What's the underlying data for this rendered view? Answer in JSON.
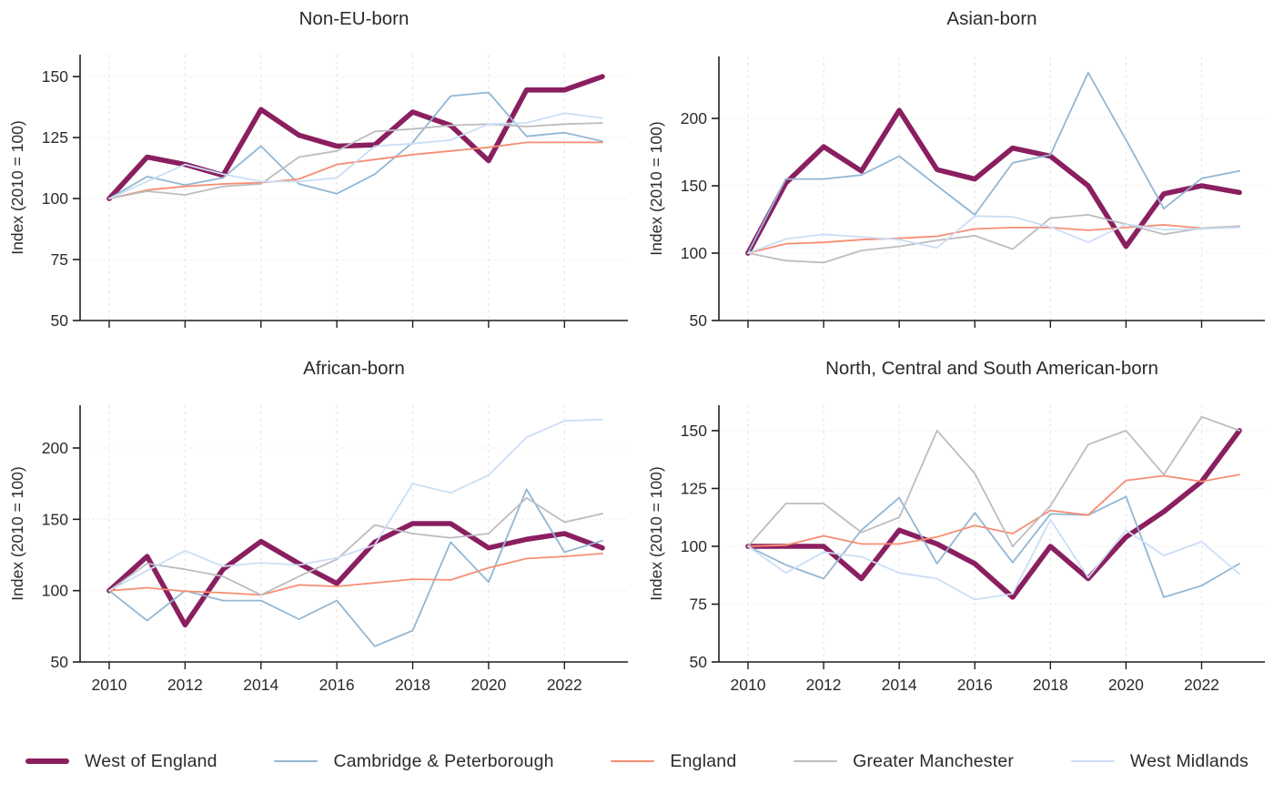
{
  "page": {
    "background": "#ffffff",
    "text_color": "#2b2a2e",
    "axis_color": "#1f1f1f",
    "grid_vertical_color": "#e6e6ea",
    "grid_horizontal_color": "#f1e9ee"
  },
  "legend": {
    "items": [
      {
        "label": "West of England",
        "color": "#8a1f60",
        "thick": true
      },
      {
        "label": "Cambridge & Peterborough",
        "color": "#92b7d4",
        "thick": false
      },
      {
        "label": "England",
        "color": "#f68e73",
        "thick": false
      },
      {
        "label": "Greater Manchester",
        "color": "#bdbdc1",
        "thick": false
      },
      {
        "label": "West Midlands",
        "color": "#cbdef5",
        "thick": false
      }
    ]
  },
  "chart_data": [
    {
      "type": "line",
      "title": "Non-EU-born",
      "ylabel": "Index (2010 = 100)",
      "x": [
        2010,
        2011,
        2012,
        2013,
        2014,
        2015,
        2016,
        2017,
        2018,
        2019,
        2020,
        2021,
        2022,
        2023
      ],
      "xticks": [
        2010,
        2012,
        2014,
        2016,
        2018,
        2020,
        2022
      ],
      "show_x_labels": false,
      "yticks": [
        150,
        125,
        100,
        75,
        50
      ],
      "ylim": [
        50,
        159
      ],
      "grid": true,
      "legend_position": "bottom-shared",
      "series": [
        {
          "name": "West of England",
          "values": [
            100,
            117,
            114,
            109.5,
            136.5,
            126,
            121.5,
            122,
            135.5,
            130,
            115.5,
            144.5,
            144.5,
            150
          ]
        },
        {
          "name": "Cambridge & Peterborough",
          "values": [
            100,
            109,
            105.5,
            108.5,
            121.5,
            106,
            102,
            110,
            123,
            142,
            143.5,
            125.5,
            127,
            123.5
          ]
        },
        {
          "name": "England",
          "values": [
            100,
            103.5,
            105,
            106,
            106.5,
            108,
            114,
            116,
            118,
            119.5,
            121,
            123,
            123,
            123
          ]
        },
        {
          "name": "Greater Manchester",
          "values": [
            100,
            103,
            101.5,
            105,
            106,
            117,
            119.5,
            127.5,
            128.5,
            130,
            130.5,
            129.5,
            130.5,
            131
          ]
        },
        {
          "name": "West Midlands",
          "values": [
            100,
            107,
            114,
            110,
            107,
            107,
            108.5,
            121.5,
            122.5,
            124,
            130.5,
            131,
            135,
            133
          ]
        }
      ]
    },
    {
      "type": "line",
      "title": "Asian-born",
      "ylabel": "Index (2010 = 100)",
      "x": [
        2010,
        2011,
        2012,
        2013,
        2014,
        2015,
        2016,
        2017,
        2018,
        2019,
        2020,
        2021,
        2022,
        2023
      ],
      "xticks": [
        2010,
        2012,
        2014,
        2016,
        2018,
        2020,
        2022
      ],
      "show_x_labels": false,
      "yticks": [
        200,
        150,
        100,
        50
      ],
      "ylim": [
        50,
        246
      ],
      "grid": true,
      "legend_position": "bottom-shared",
      "series": [
        {
          "name": "West of England",
          "values": [
            100,
            152,
            179,
            161,
            206,
            162,
            155,
            178,
            172,
            150,
            105,
            144,
            150,
            145
          ]
        },
        {
          "name": "Cambridge & Peterborough",
          "values": [
            100,
            155,
            155,
            158,
            172,
            150,
            128.5,
            167,
            173,
            234,
            184,
            133,
            155.5,
            161
          ]
        },
        {
          "name": "England",
          "values": [
            100,
            107,
            108,
            110,
            111,
            112.5,
            118,
            119,
            119,
            117,
            119,
            121,
            118.5,
            120
          ]
        },
        {
          "name": "Greater Manchester",
          "values": [
            100,
            94.5,
            93,
            102,
            105,
            109.5,
            113,
            103,
            126,
            128.5,
            121.5,
            114,
            118.5,
            120
          ]
        },
        {
          "name": "West Midlands",
          "values": [
            100,
            110.5,
            114,
            112,
            110,
            104,
            127.5,
            127,
            119.5,
            108,
            121.5,
            117.5,
            118,
            119
          ]
        }
      ]
    },
    {
      "type": "line",
      "title": "African-born",
      "ylabel": "Index (2010 = 100)",
      "x": [
        2010,
        2011,
        2012,
        2013,
        2014,
        2015,
        2016,
        2017,
        2018,
        2019,
        2020,
        2021,
        2022,
        2023
      ],
      "xticks": [
        2010,
        2012,
        2014,
        2016,
        2018,
        2020,
        2022
      ],
      "show_x_labels": true,
      "yticks": [
        200,
        150,
        100,
        50
      ],
      "ylim": [
        50,
        230
      ],
      "grid": true,
      "legend_position": "bottom-shared",
      "series": [
        {
          "name": "West of England",
          "values": [
            100,
            124,
            76,
            115,
            134.5,
            119,
            105,
            134,
            147,
            147,
            130,
            136,
            140,
            130
          ]
        },
        {
          "name": "Cambridge & Peterborough",
          "values": [
            100,
            79,
            100,
            93,
            93,
            80,
            93,
            61,
            72,
            134,
            106,
            171,
            127,
            135
          ]
        },
        {
          "name": "England",
          "values": [
            100,
            102,
            99.5,
            98.5,
            97,
            104,
            103,
            105.5,
            108,
            107.5,
            116,
            122.5,
            124,
            126
          ]
        },
        {
          "name": "Greater Manchester",
          "values": [
            100,
            119,
            115,
            110,
            97,
            110,
            122,
            146,
            140,
            137,
            140,
            165,
            148,
            154
          ]
        },
        {
          "name": "West Midlands",
          "values": [
            100,
            114,
            128,
            117,
            119.5,
            118,
            123,
            132,
            175,
            168.5,
            181,
            207.5,
            219,
            220
          ]
        }
      ]
    },
    {
      "type": "line",
      "title": "North, Central and South American-born",
      "ylabel": "Index (2010 = 100)",
      "x": [
        2010,
        2011,
        2012,
        2013,
        2014,
        2015,
        2016,
        2017,
        2018,
        2019,
        2020,
        2021,
        2022,
        2023
      ],
      "xticks": [
        2010,
        2012,
        2014,
        2016,
        2018,
        2020,
        2022
      ],
      "show_x_labels": true,
      "yticks": [
        150,
        125,
        100,
        75,
        50
      ],
      "ylim": [
        50,
        161
      ],
      "grid": true,
      "legend_position": "bottom-shared",
      "series": [
        {
          "name": "West of England",
          "values": [
            100,
            100,
            100,
            86,
            107,
            101,
            92.5,
            78,
            100,
            86,
            104,
            115,
            128,
            150
          ]
        },
        {
          "name": "Cambridge & Peterborough",
          "values": [
            100,
            92,
            86,
            107,
            121,
            92.5,
            114.5,
            93,
            114,
            113.5,
            121.5,
            78,
            83,
            92.5
          ]
        },
        {
          "name": "England",
          "values": [
            100,
            100.5,
            104.5,
            101,
            101,
            104,
            109,
            105.5,
            115.5,
            113.5,
            128.5,
            130.5,
            128,
            131
          ]
        },
        {
          "name": "Greater Manchester",
          "values": [
            100,
            118.5,
            118.5,
            106,
            112.5,
            150,
            131.5,
            100,
            117.5,
            144,
            150,
            131,
            156,
            150
          ]
        },
        {
          "name": "West Midlands",
          "values": [
            100,
            88.5,
            97.5,
            95.5,
            88.5,
            86,
            77,
            79.5,
            111.5,
            86.5,
            107,
            96,
            102,
            88
          ]
        }
      ]
    }
  ]
}
